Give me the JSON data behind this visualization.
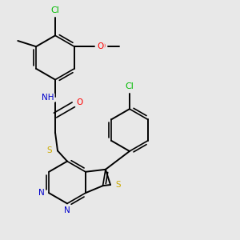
{
  "bg_color": "#e8e8e8",
  "atom_colors": {
    "N": "#0000cc",
    "O": "#ff0000",
    "S": "#ccaa00",
    "Cl": "#00bb00",
    "C": "#000000",
    "H": "#555555"
  },
  "layout": {
    "xlim": [
      -1.0,
      3.5
    ],
    "ylim": [
      -3.2,
      1.8
    ]
  }
}
